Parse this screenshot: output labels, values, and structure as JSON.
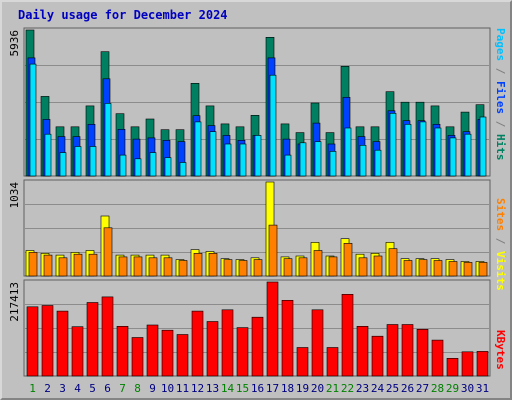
{
  "title": "Daily usage for December 2024",
  "panels": {
    "top": {
      "max_label": "5936",
      "legend": [
        {
          "text": "Pages",
          "color": "#00c0ff"
        },
        {
          "text": " / ",
          "color": "#808080"
        },
        {
          "text": "Files",
          "color": "#0040ff"
        },
        {
          "text": " / ",
          "color": "#808080"
        },
        {
          "text": "Hits",
          "color": "#008060"
        }
      ]
    },
    "middle": {
      "max_label": "1034",
      "legend": [
        {
          "text": "Sites",
          "color": "#ff8000"
        },
        {
          "text": " / ",
          "color": "#808080"
        },
        {
          "text": "Visits",
          "color": "#ffff00"
        }
      ]
    },
    "bottom": {
      "max_label": "217413",
      "legend": [
        {
          "text": "KBytes",
          "color": "#ff0000"
        }
      ]
    }
  },
  "colors": {
    "hits": "#008060",
    "files": "#0040ff",
    "pages": "#00e0ff",
    "visits": "#ffff00",
    "sites": "#ff8000",
    "kbytes": "#ff0000",
    "weekday_label": "#000080",
    "weekend_label": "#008000"
  },
  "chart_data": {
    "type": "bar",
    "categories": [
      "1",
      "2",
      "3",
      "4",
      "5",
      "6",
      "7",
      "8",
      "9",
      "10",
      "11",
      "12",
      "13",
      "14",
      "15",
      "16",
      "17",
      "18",
      "19",
      "20",
      "21",
      "22",
      "23",
      "24",
      "25",
      "26",
      "27",
      "28",
      "29",
      "30",
      "31"
    ],
    "weekend_days": [
      "1",
      "7",
      "8",
      "14",
      "15",
      "21",
      "22",
      "28",
      "29"
    ],
    "panels": [
      {
        "name": "usage-hits-files-pages",
        "ylim": [
          0,
          5936
        ],
        "series": [
          {
            "name": "Hits",
            "values": [
              5936,
              3237,
              2000,
              2000,
              2849,
              5052,
              2533,
              2000,
              2317,
              1882,
              1882,
              3770,
              2849,
              2118,
              2000,
              2467,
              5641,
              2118,
              1765,
              2967,
              1765,
              4459,
              2000,
              2000,
              3427,
              3000,
              3000,
              2849,
              2000,
              2600,
              2900
            ]
          },
          {
            "name": "Files",
            "values": [
              4800,
              2300,
              1600,
              1600,
              2100,
              3950,
              1900,
              1500,
              1550,
              1450,
              1400,
              2450,
              2050,
              1650,
              1450,
              1650,
              4800,
              1500,
              1300,
              2150,
              1300,
              3200,
              1600,
              1400,
              2650,
              2250,
              2250,
              2100,
              1650,
              1800,
              2300
            ]
          },
          {
            "name": "Pages",
            "values": [
              4550,
              1700,
              950,
              1200,
              1200,
              2950,
              850,
              700,
              950,
              750,
              550,
              2200,
              1800,
              1300,
              1300,
              1650,
              4100,
              850,
              1350,
              1400,
              1000,
              1950,
              1250,
              1050,
              2550,
              2100,
              2200,
              1950,
              1550,
              1700,
              2400
            ]
          }
        ]
      },
      {
        "name": "sites-visits",
        "ylim": [
          0,
          1034
        ],
        "series": [
          {
            "name": "Visits",
            "values": [
              280,
              250,
              230,
              260,
              280,
              660,
              230,
              230,
              230,
              230,
              180,
              290,
              270,
              190,
              180,
              200,
              1034,
              210,
              220,
              370,
              220,
              410,
              240,
              250,
              370,
              190,
              190,
              190,
              180,
              160,
              160
            ]
          },
          {
            "name": "Sites",
            "values": [
              260,
              230,
              200,
              240,
              240,
              530,
              210,
              210,
              200,
              200,
              170,
              250,
              250,
              180,
              170,
              180,
              560,
              190,
              200,
              280,
              210,
              360,
              200,
              220,
              300,
              170,
              180,
              170,
              160,
              150,
              150
            ]
          }
        ]
      },
      {
        "name": "kbytes",
        "ylim": [
          0,
          217413
        ],
        "series": [
          {
            "name": "KBytes",
            "values": [
              160000,
              163000,
              150000,
              114000,
              170000,
              183000,
              115000,
              89000,
              118000,
              106000,
              96000,
              150000,
              126000,
              153000,
              112000,
              136000,
              217413,
              175000,
              66000,
              153000,
              66000,
              189000,
              115000,
              92000,
              119000,
              119000,
              108000,
              83000,
              41000,
              56000,
              57000
            ]
          }
        ]
      }
    ]
  }
}
